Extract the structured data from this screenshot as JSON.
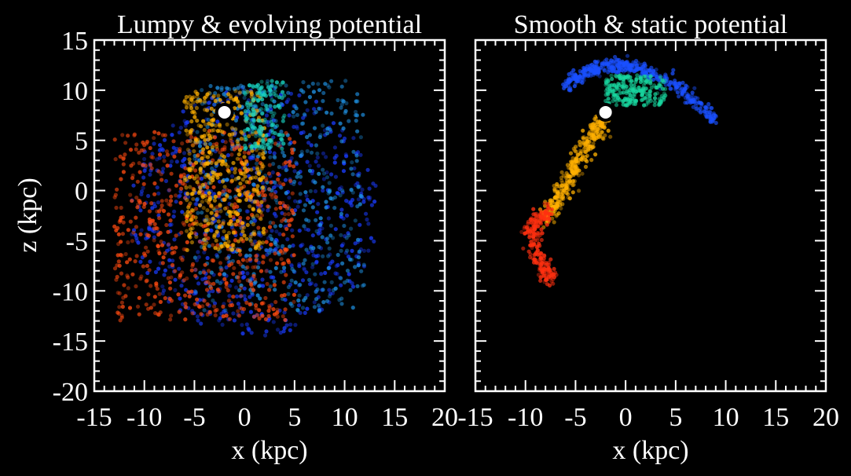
{
  "chart_data": [
    {
      "type": "scatter",
      "title": "Lumpy & evolving potential",
      "xlabel": "x (kpc)",
      "ylabel": "z (kpc)",
      "xlim": [
        -15,
        20
      ],
      "ylim": [
        -20,
        15
      ],
      "xticks": [
        -15,
        -10,
        -5,
        0,
        5,
        10,
        15,
        20
      ],
      "yticks": [
        -20,
        -15,
        -10,
        -5,
        0,
        5,
        10,
        15
      ],
      "xtick_labels": [
        "-15",
        "-10",
        "-5",
        "0",
        "5",
        "10",
        "15",
        "20"
      ],
      "ytick_labels": [
        "-20",
        "-15",
        "-10",
        "-5",
        "0",
        "5",
        "10",
        "15"
      ],
      "marker": {
        "name": "progenitor",
        "x": -2,
        "z": 7.8
      },
      "series": [
        {
          "name": "old stripped stars (blue)",
          "color": "#1a3cff",
          "extent": {
            "center": [
              1,
              -2
            ],
            "radius": 12.5
          },
          "approx_points": 700
        },
        {
          "name": "intermediate debris (cyan-blue)",
          "color": "#1e8fe0",
          "extent": {
            "x": [
              -5,
              12
            ],
            "z": [
              -12,
              11
            ]
          },
          "approx_points": 450
        },
        {
          "name": "recent debris (orange-red)",
          "color": "#ff4a10",
          "extent": {
            "x": [
              -13,
              5
            ],
            "z": [
              -13,
              6
            ]
          },
          "approx_points": 600
        },
        {
          "name": "youngest debris (yellow-orange)",
          "color": "#ffb000",
          "extent": {
            "x": [
              -6,
              2
            ],
            "z": [
              -6,
              10
            ]
          },
          "approx_points": 450
        },
        {
          "name": "bright inner arc (cyan-green)",
          "color": "#18d0c0",
          "extent": {
            "x": [
              0,
              4
            ],
            "z": [
              4,
              11
            ]
          },
          "approx_points": 160
        }
      ]
    },
    {
      "type": "scatter",
      "title": "Smooth & static potential",
      "xlabel": "x (kpc)",
      "ylabel": "",
      "xlim": [
        -15,
        20
      ],
      "ylim": [
        -20,
        15
      ],
      "xticks": [
        -15,
        -10,
        -5,
        0,
        5,
        10,
        15,
        20
      ],
      "xtick_labels": [
        "-15",
        "-10",
        "-5",
        "0",
        "5",
        "10",
        "15",
        "20"
      ],
      "marker": {
        "name": "progenitor",
        "x": -2,
        "z": 7.8
      },
      "series": [
        {
          "name": "leading arc (blue)",
          "color": "#1a50ff",
          "arc": {
            "from": [
              -6,
              10.5
            ],
            "peak": [
              1,
              12.2
            ],
            "to": [
              9,
              7
            ]
          },
          "approx_points": 450
        },
        {
          "name": "inner fan (cyan-green)",
          "color": "#18d8a0",
          "extent": {
            "x": [
              -2,
              4
            ],
            "z": [
              8.5,
              11.5
            ]
          },
          "approx_points": 220
        },
        {
          "name": "trailing stream (yellow-orange)",
          "color": "#ffb000",
          "path": [
            [
              -2,
              7.3
            ],
            [
              -4,
              4.5
            ],
            [
              -6,
              0.5
            ],
            [
              -8,
              -3
            ]
          ],
          "approx_points": 350
        },
        {
          "name": "trailing stream tip (red)",
          "color": "#ff3010",
          "path": [
            [
              -8,
              -2
            ],
            [
              -9.5,
              -4
            ],
            [
              -8.5,
              -7
            ],
            [
              -7.5,
              -9
            ]
          ],
          "approx_points": 230
        }
      ]
    }
  ]
}
